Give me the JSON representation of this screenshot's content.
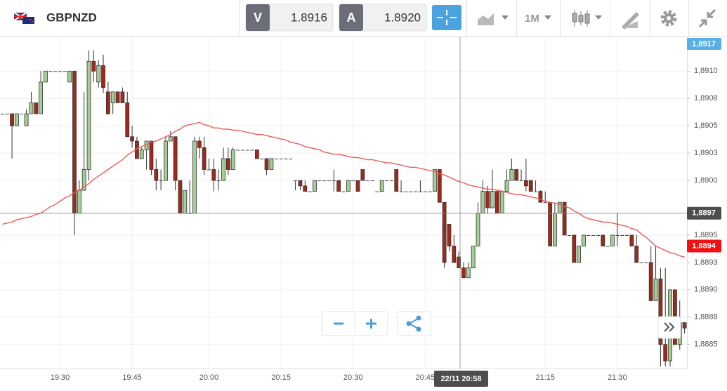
{
  "toolbar": {
    "symbol": "GBPNZD",
    "bid_label": "V",
    "bid": "1.8916",
    "ask_label": "A",
    "ask": "1.8920",
    "timeframe": "1M"
  },
  "chart_data": {
    "type": "candlestick",
    "up_color": "#a3cf94",
    "down_color": "#9e2a1b",
    "ylim": [
      1.88828,
      1.89131
    ],
    "yticks": [
      {
        "value": 1.891,
        "label": "1,8910"
      },
      {
        "value": 1.89075,
        "label": "1,8908"
      },
      {
        "value": 1.8905,
        "label": "1,8905"
      },
      {
        "value": 1.89025,
        "label": "1,8903"
      },
      {
        "value": 1.89,
        "label": "1,8900"
      },
      {
        "value": 1.8895,
        "label": "1,8895"
      },
      {
        "value": 1.88925,
        "label": "1,8893"
      },
      {
        "value": 1.889,
        "label": "1,8890"
      },
      {
        "value": 1.88875,
        "label": "1,8888"
      },
      {
        "value": 1.8885,
        "label": "1,8885"
      }
    ],
    "grid": true,
    "top_tag": "1,8917",
    "current_price": {
      "value": 1.8894,
      "label": "1,8894"
    },
    "crosshair": {
      "x_label": "22/11 20:58",
      "y": {
        "value": 1.8897,
        "label": "1,8897"
      }
    },
    "categories": [
      null,
      null,
      null,
      null,
      null,
      null,
      null,
      null,
      null,
      null,
      null,
      null,
      "19:30",
      null,
      null,
      null,
      null,
      null,
      null,
      null,
      null,
      null,
      null,
      null,
      null,
      null,
      null,
      "19:45",
      null,
      null,
      null,
      null,
      null,
      null,
      null,
      null,
      null,
      null,
      null,
      null,
      null,
      null,
      null,
      "20:00",
      null,
      null,
      null,
      null,
      null,
      null,
      null,
      null,
      null,
      null,
      null,
      null,
      null,
      null,
      "20:15",
      null,
      null,
      null,
      null,
      null,
      null,
      null,
      null,
      null,
      null,
      null,
      null,
      null,
      null,
      "20:30",
      null,
      null,
      null,
      null,
      null,
      null,
      null,
      null,
      null,
      null,
      null,
      null,
      null,
      null,
      "20:45",
      null,
      null,
      null,
      null,
      null,
      null,
      null,
      null,
      null,
      null,
      null,
      null,
      null,
      null,
      null,
      null,
      null,
      null,
      null,
      null,
      null,
      null,
      null,
      null,
      "21:15",
      null,
      null,
      null,
      null,
      null,
      null,
      null,
      null,
      null,
      null,
      null,
      null,
      null,
      null,
      "21:30",
      null,
      null,
      null,
      null,
      null,
      null,
      null,
      null,
      null,
      null,
      null,
      null,
      null,
      null
    ],
    "ohlc": [
      [
        1.89061,
        1.89061,
        1.89061,
        1.89061
      ],
      [
        1.89061,
        1.89061,
        1.89061,
        1.89061
      ],
      [
        1.89061,
        1.89061,
        1.8902,
        1.8905
      ],
      [
        1.8905,
        1.89061,
        1.8905,
        1.89061
      ],
      [
        1.89061,
        1.89061,
        1.89061,
        1.89061
      ],
      [
        1.8905,
        1.89065,
        1.8905,
        1.89061
      ],
      [
        1.89061,
        1.89081,
        1.89061,
        1.89071
      ],
      [
        1.89071,
        1.89071,
        1.89061,
        1.89061
      ],
      [
        1.89061,
        1.891,
        1.89061,
        1.8909
      ],
      [
        1.8909,
        1.891,
        1.8909,
        1.891
      ],
      [
        1.891,
        1.891,
        1.891,
        1.891
      ],
      [
        1.891,
        1.891,
        1.891,
        1.891
      ],
      [
        1.891,
        1.891,
        1.891,
        1.891
      ],
      [
        1.891,
        1.891,
        1.891,
        1.891
      ],
      [
        1.8909,
        1.891,
        1.8909,
        1.891
      ],
      [
        1.891,
        1.891,
        1.8895,
        1.8897
      ],
      [
        1.8897,
        1.89,
        1.8897,
        1.88991
      ],
      [
        1.88991,
        1.89081,
        1.88991,
        1.8901
      ],
      [
        1.8901,
        1.89119,
        1.89,
        1.89109
      ],
      [
        1.89109,
        1.89119,
        1.8909,
        1.891
      ],
      [
        1.8909,
        1.8911,
        1.89085,
        1.89105
      ],
      [
        1.89105,
        1.89115,
        1.8908,
        1.89085
      ],
      [
        1.89081,
        1.8909,
        1.8906,
        1.89061
      ],
      [
        1.89071,
        1.89081,
        1.89061,
        1.89081
      ],
      [
        1.89081,
        1.89081,
        1.89071,
        1.89071
      ],
      [
        1.89081,
        1.89085,
        1.89071,
        1.89071
      ],
      [
        1.89071,
        1.89081,
        1.8904,
        1.8904
      ],
      [
        1.8904,
        1.8905,
        1.8903,
        1.89036
      ],
      [
        1.89036,
        1.8904,
        1.8902,
        1.8902
      ],
      [
        1.8902,
        1.8903,
        1.8902,
        1.89028
      ],
      [
        1.89028,
        1.89036,
        1.8901,
        1.89036
      ],
      [
        1.89036,
        1.89036,
        1.89005,
        1.8901
      ],
      [
        1.8901,
        1.8902,
        1.88991,
        1.89
      ],
      [
        1.89,
        1.8901,
        1.88991,
        1.89
      ],
      [
        1.89,
        1.8904,
        1.89,
        1.89036
      ],
      [
        1.89036,
        1.89045,
        1.89036,
        1.8904
      ],
      [
        1.8904,
        1.8904,
        1.88991,
        1.89
      ],
      [
        1.89,
        1.89,
        1.8897,
        1.8897
      ],
      [
        1.8897,
        1.88991,
        1.8897,
        1.88991
      ],
      [
        1.8897,
        1.89,
        1.8897,
        1.8897
      ],
      [
        1.8897,
        1.8904,
        1.8897,
        1.89036
      ],
      [
        1.89036,
        1.8904,
        1.8902,
        1.8903
      ],
      [
        1.8903,
        1.8904,
        1.89005,
        1.8901
      ],
      [
        1.8901,
        1.8902,
        1.8901,
        1.8901
      ],
      [
        1.8901,
        1.8902,
        1.8899,
        1.89
      ],
      [
        1.89,
        1.8901,
        1.88991,
        1.89
      ],
      [
        1.89,
        1.8903,
        1.89,
        1.8902
      ],
      [
        1.8902,
        1.8903,
        1.89005,
        1.8901
      ],
      [
        1.8901,
        1.8903,
        1.8901,
        1.89028
      ],
      [
        1.89028,
        1.89028,
        1.89028,
        1.89028
      ],
      [
        1.89028,
        1.89028,
        1.89028,
        1.89028
      ],
      [
        1.89028,
        1.89028,
        1.89028,
        1.89028
      ],
      [
        1.89028,
        1.89028,
        1.89028,
        1.89028
      ],
      [
        1.89028,
        1.89028,
        1.8902,
        1.8902
      ],
      [
        1.8902,
        1.8902,
        1.8902,
        1.8902
      ],
      [
        1.8902,
        1.8902,
        1.89005,
        1.8901
      ],
      [
        1.8901,
        1.8902,
        1.8901,
        1.8902
      ],
      [
        1.8902,
        1.8902,
        1.8902,
        1.8902
      ],
      [
        1.8902,
        1.8902,
        1.8902,
        1.8902
      ],
      [
        1.8902,
        1.8902,
        1.8902,
        1.8902
      ],
      [
        1.8902,
        1.8902,
        1.8902,
        1.8902
      ],
      [
        1.89,
        1.89,
        1.88991,
        1.89
      ],
      [
        1.89,
        1.89,
        1.88991,
        1.88995
      ],
      [
        1.88995,
        1.89,
        1.8899,
        1.8899
      ],
      [
        1.8899,
        1.8899,
        1.8899,
        1.8899
      ],
      [
        1.8899,
        1.89,
        1.8899,
        1.89
      ],
      [
        1.89,
        1.89,
        1.89,
        1.89
      ],
      [
        1.89,
        1.89,
        1.89,
        1.89
      ],
      [
        1.89,
        1.89,
        1.89,
        1.89
      ],
      [
        1.89,
        1.8901,
        1.8899,
        1.89
      ],
      [
        1.89,
        1.89,
        1.8899,
        1.8899
      ],
      [
        1.8899,
        1.8899,
        1.8899,
        1.8899
      ],
      [
        1.8899,
        1.89,
        1.8899,
        1.89
      ],
      [
        1.89,
        1.89,
        1.89,
        1.89
      ],
      [
        1.89,
        1.89,
        1.8899,
        1.8899
      ],
      [
        1.8901,
        1.8901,
        1.89,
        1.89
      ],
      [
        1.89,
        1.89,
        1.89,
        1.89
      ],
      [
        1.89,
        1.89,
        1.89,
        1.89
      ],
      [
        1.8899,
        1.8899,
        1.8899,
        1.8899
      ],
      [
        1.8899,
        1.89,
        1.8899,
        1.89
      ],
      [
        1.89,
        1.89,
        1.89,
        1.89
      ],
      [
        1.89,
        1.89,
        1.89,
        1.89
      ],
      [
        1.8901,
        1.8901,
        1.8899,
        1.8899
      ],
      [
        1.8899,
        1.89,
        1.8899,
        1.8899
      ],
      [
        1.8899,
        1.8899,
        1.8899,
        1.8899
      ],
      [
        1.8899,
        1.8899,
        1.8899,
        1.8899
      ],
      [
        1.8899,
        1.8899,
        1.8899,
        1.8899
      ],
      [
        1.8899,
        1.89,
        1.8899,
        1.8899
      ],
      [
        1.8899,
        1.8899,
        1.8899,
        1.8899
      ],
      [
        1.8899,
        1.8899,
        1.8899,
        1.8899
      ],
      [
        1.8899,
        1.8901,
        1.8899,
        1.8901
      ],
      [
        1.8901,
        1.8901,
        1.8898,
        1.8898
      ],
      [
        1.8898,
        1.8898,
        1.8892,
        1.88925
      ],
      [
        1.8896,
        1.8896,
        1.88935,
        1.8894
      ],
      [
        1.8894,
        1.8895,
        1.88925,
        1.88925
      ],
      [
        1.8893,
        1.88935,
        1.8892,
        1.8892
      ],
      [
        1.8892,
        1.88925,
        1.88911,
        1.88911
      ],
      [
        1.88911,
        1.88925,
        1.88911,
        1.8892
      ],
      [
        1.8892,
        1.8894,
        1.8892,
        1.8894
      ],
      [
        1.8894,
        1.8898,
        1.8894,
        1.8897
      ],
      [
        1.8897,
        1.89,
        1.8897,
        1.8899
      ],
      [
        1.8899,
        1.88995,
        1.8897,
        1.88975
      ],
      [
        1.88975,
        1.8901,
        1.88975,
        1.8899
      ],
      [
        1.8899,
        1.8899,
        1.8897,
        1.8897
      ],
      [
        1.8897,
        1.88991,
        1.8897,
        1.8899
      ],
      [
        1.8899,
        1.8901,
        1.8899,
        1.89
      ],
      [
        1.89,
        1.8902,
        1.89,
        1.8901
      ],
      [
        1.8901,
        1.8901,
        1.89,
        1.89
      ],
      [
        1.89,
        1.8901,
        1.89,
        1.89
      ],
      [
        1.89,
        1.8902,
        1.8899,
        1.88995
      ],
      [
        1.89,
        1.89,
        1.8899,
        1.8899
      ],
      [
        1.8899,
        1.89,
        1.8899,
        1.8899
      ],
      [
        1.8899,
        1.88991,
        1.8898,
        1.8898
      ],
      [
        1.8898,
        1.8899,
        1.8898,
        1.8898
      ],
      [
        1.8898,
        1.8898,
        1.8894,
        1.8894
      ],
      [
        1.8894,
        1.8898,
        1.8894,
        1.8897
      ],
      [
        1.8897,
        1.8898,
        1.8897,
        1.8898
      ],
      [
        1.8898,
        1.8898,
        1.8895,
        1.8895
      ],
      [
        1.8895,
        1.8895,
        1.8895,
        1.8895
      ],
      [
        1.8895,
        1.8895,
        1.88925,
        1.88925
      ],
      [
        1.88925,
        1.8894,
        1.88925,
        1.8894
      ],
      [
        1.8894,
        1.8895,
        1.8894,
        1.8895
      ],
      [
        1.8895,
        1.8895,
        1.8895,
        1.8895
      ],
      [
        1.8895,
        1.8895,
        1.8895,
        1.8895
      ],
      [
        1.8895,
        1.8895,
        1.8895,
        1.8895
      ],
      [
        1.8895,
        1.8895,
        1.8894,
        1.8894
      ],
      [
        1.8894,
        1.8894,
        1.8894,
        1.8894
      ],
      [
        1.8894,
        1.8895,
        1.8894,
        1.8895
      ],
      [
        1.8895,
        1.8897,
        1.8894,
        1.8895
      ],
      [
        1.8895,
        1.8895,
        1.8895,
        1.8895
      ],
      [
        1.8895,
        1.8895,
        1.8895,
        1.8895
      ],
      [
        1.8895,
        1.8895,
        1.8894,
        1.8894
      ],
      [
        1.8894,
        1.8895,
        1.88925,
        1.88925
      ],
      [
        1.88925,
        1.88925,
        1.88925,
        1.88925
      ],
      [
        1.88925,
        1.88925,
        1.88925,
        1.88925
      ],
      [
        1.88925,
        1.8894,
        1.8889,
        1.8889
      ],
      [
        1.8889,
        1.8894,
        1.8889,
        1.8891
      ],
      [
        1.8891,
        1.8892,
        1.8883,
        1.8885
      ],
      [
        1.8885,
        1.8892,
        1.8883,
        1.88835
      ],
      [
        1.88835,
        1.889,
        1.8883,
        1.889
      ],
      [
        1.889,
        1.889,
        1.8885,
        1.8885
      ],
      [
        1.8885,
        1.8889,
        1.88845,
        1.8887
      ],
      [
        1.8887,
        1.8887,
        1.8886,
        1.88865
      ]
    ],
    "ma": {
      "color": "#ee5a55",
      "values": [
        1.8896,
        1.88961,
        1.88962,
        1.88964,
        1.88965,
        1.88966,
        1.88967,
        1.88969,
        1.8897,
        1.88973,
        1.88976,
        1.88978,
        1.88981,
        1.88984,
        1.88986,
        1.88989,
        1.88991,
        1.88994,
        1.88997,
        1.89001,
        1.89004,
        1.89007,
        1.8901,
        1.89013,
        1.89016,
        1.89019,
        1.89023,
        1.89026,
        1.89029,
        1.89031,
        1.89033,
        1.89035,
        1.89036,
        1.89038,
        1.8904,
        1.89042,
        1.89045,
        1.89047,
        1.8905,
        1.89051,
        1.89052,
        1.89053,
        1.89051,
        1.8905,
        1.89048,
        1.89048,
        1.89047,
        1.89047,
        1.89046,
        1.89046,
        1.89045,
        1.89044,
        1.89043,
        1.89042,
        1.89042,
        1.89041,
        1.8904,
        1.89039,
        1.89038,
        1.89037,
        1.89035,
        1.89034,
        1.89033,
        1.89031,
        1.8903,
        1.89029,
        1.89028,
        1.89026,
        1.89025,
        1.89024,
        1.89024,
        1.89023,
        1.89022,
        1.89021,
        1.89021,
        1.8902,
        1.89019,
        1.89019,
        1.89018,
        1.89017,
        1.89016,
        1.89016,
        1.89015,
        1.89014,
        1.89013,
        1.89012,
        1.89012,
        1.89011,
        1.8901,
        1.89009,
        1.89008,
        1.89006,
        1.89005,
        1.89003,
        1.89001,
        1.88999,
        1.88998,
        1.88996,
        1.88995,
        1.88994,
        1.88993,
        1.88992,
        1.88992,
        1.88991,
        1.8899,
        1.88989,
        1.88988,
        1.88987,
        1.88987,
        1.88986,
        1.88985,
        1.88984,
        1.88983,
        1.88981,
        1.8898,
        1.88979,
        1.88978,
        1.88976,
        1.88975,
        1.88972,
        1.8897,
        1.88967,
        1.88965,
        1.88964,
        1.88963,
        1.88962,
        1.88962,
        1.88961,
        1.8896,
        1.88959,
        1.88958,
        1.88956,
        1.88955,
        1.88951,
        1.88948,
        1.88944,
        1.8894,
        1.88938,
        1.88936,
        1.88934,
        1.88933,
        1.88931,
        1.8893
      ]
    }
  }
}
